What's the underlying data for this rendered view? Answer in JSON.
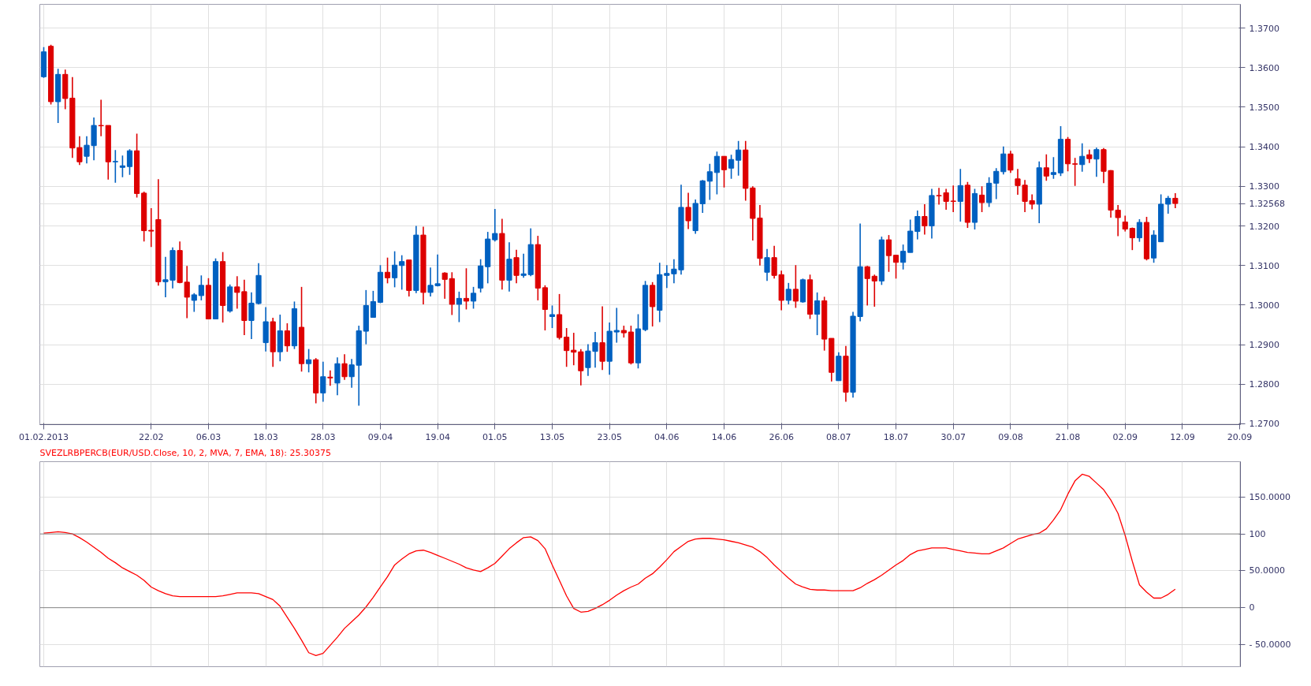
{
  "chart_data": [
    {
      "type": "candlestick",
      "categories": [
        "01.02.2013",
        null,
        null,
        null,
        null,
        null,
        null,
        null,
        null,
        null,
        null,
        null,
        null,
        null,
        null,
        "22.02",
        null,
        null,
        null,
        null,
        null,
        null,
        null,
        "06.03",
        null,
        null,
        null,
        null,
        null,
        null,
        null,
        "18.03",
        null,
        null,
        null,
        null,
        null,
        null,
        null,
        "28.03",
        null,
        null,
        null,
        null,
        null,
        null,
        null,
        "09.04",
        null,
        null,
        null,
        null,
        null,
        null,
        null,
        "19.04",
        null,
        null,
        null,
        null,
        null,
        null,
        null,
        "01.05",
        null,
        null,
        null,
        null,
        null,
        null,
        null,
        "13.05",
        null,
        null,
        null,
        null,
        null,
        null,
        null,
        "23.05",
        null,
        null,
        null,
        null,
        null,
        null,
        null,
        "04.06",
        null,
        null,
        null,
        null,
        null,
        null,
        null,
        "14.06",
        null,
        null,
        null,
        null,
        null,
        null,
        null,
        "26.06",
        null,
        null,
        null,
        null,
        null,
        null,
        null,
        "08.07",
        null,
        null,
        null,
        null,
        null,
        null,
        null,
        "18.07",
        null,
        null,
        null,
        null,
        null,
        null,
        null,
        "30.07",
        null,
        null,
        null,
        null,
        null,
        null,
        null,
        "09.08",
        null,
        null,
        null,
        null,
        null,
        null,
        null,
        "21.08",
        null,
        null,
        null,
        null,
        null,
        null,
        null,
        "02.09",
        null,
        null,
        null,
        null,
        null,
        null,
        null,
        "12.09",
        null,
        null,
        null,
        null,
        null,
        null,
        null,
        "20.09"
      ],
      "ohlc": [
        [
          1.3577,
          1.3652,
          1.3574,
          1.364
        ],
        [
          1.3654,
          1.3658,
          1.3507,
          1.3514
        ],
        [
          1.3514,
          1.3597,
          1.346,
          1.3583
        ],
        [
          1.3583,
          1.3595,
          1.3495,
          1.3522
        ],
        [
          1.3523,
          1.3576,
          1.3372,
          1.3397
        ],
        [
          1.3398,
          1.3427,
          1.3354,
          1.3362
        ],
        [
          1.3376,
          1.3427,
          1.3358,
          1.3404
        ],
        [
          1.3403,
          1.3474,
          1.3366,
          1.3454
        ],
        [
          1.3454,
          1.3519,
          1.3427,
          1.3453
        ],
        [
          1.3454,
          1.3454,
          1.3317,
          1.3362
        ],
        [
          1.3362,
          1.3392,
          1.3309,
          1.3363
        ],
        [
          1.3348,
          1.3378,
          1.3323,
          1.3352
        ],
        [
          1.335,
          1.3394,
          1.3329,
          1.339
        ],
        [
          1.339,
          1.3433,
          1.3272,
          1.3282
        ],
        [
          1.3283,
          1.3287,
          1.3161,
          1.3188
        ],
        [
          1.3189,
          1.3245,
          1.3147,
          1.3187
        ],
        [
          1.3216,
          1.3318,
          1.3049,
          1.3059
        ],
        [
          1.3059,
          1.3122,
          1.302,
          1.3064
        ],
        [
          1.3063,
          1.3146,
          1.3042,
          1.3138
        ],
        [
          1.3138,
          1.3161,
          1.3055,
          1.3057
        ],
        [
          1.3058,
          1.3099,
          1.2967,
          1.302
        ],
        [
          1.3012,
          1.303,
          1.2983,
          1.3026
        ],
        [
          1.3024,
          1.3075,
          1.3012,
          1.305
        ],
        [
          1.305,
          1.3068,
          1.2964,
          1.2965
        ],
        [
          1.2965,
          1.3118,
          1.2964,
          1.311
        ],
        [
          1.311,
          1.3134,
          1.2956,
          1.2999
        ],
        [
          1.2985,
          1.3052,
          1.2981,
          1.3046
        ],
        [
          1.3046,
          1.3073,
          1.2991,
          1.3032
        ],
        [
          1.3034,
          1.3064,
          1.2924,
          1.2961
        ],
        [
          1.2961,
          1.3032,
          1.2914,
          1.3005
        ],
        [
          1.3004,
          1.3106,
          1.3002,
          1.3075
        ],
        [
          1.2905,
          1.2995,
          1.2883,
          1.2958
        ],
        [
          1.2958,
          1.2968,
          1.2844,
          1.2882
        ],
        [
          1.2882,
          1.2976,
          1.2858,
          1.2935
        ],
        [
          1.2935,
          1.2954,
          1.2882,
          1.2897
        ],
        [
          1.2897,
          1.3009,
          1.2889,
          1.2991
        ],
        [
          1.2944,
          1.3046,
          1.2832,
          1.2852
        ],
        [
          1.2852,
          1.2889,
          1.283,
          1.2862
        ],
        [
          1.2862,
          1.2866,
          1.2752,
          1.2778
        ],
        [
          1.2778,
          1.2857,
          1.2756,
          1.2819
        ],
        [
          1.2818,
          1.2835,
          1.2796,
          1.2816
        ],
        [
          1.2803,
          1.2868,
          1.2772,
          1.2852
        ],
        [
          1.2852,
          1.2876,
          1.2811,
          1.2819
        ],
        [
          1.2819,
          1.2864,
          1.2791,
          1.2849
        ],
        [
          1.2848,
          1.2948,
          1.2746,
          1.2935
        ],
        [
          1.2934,
          1.3038,
          1.2901,
          1.2999
        ],
        [
          1.2969,
          1.3036,
          1.2969,
          1.3009
        ],
        [
          1.3007,
          1.3101,
          1.3005,
          1.3083
        ],
        [
          1.3083,
          1.312,
          1.3055,
          1.3069
        ],
        [
          1.3069,
          1.3136,
          1.3045,
          1.3101
        ],
        [
          1.31,
          1.3126,
          1.3039,
          1.311
        ],
        [
          1.3114,
          1.3114,
          1.3022,
          1.3037
        ],
        [
          1.3037,
          1.32,
          1.303,
          1.3177
        ],
        [
          1.3177,
          1.3198,
          1.3002,
          1.3032
        ],
        [
          1.3032,
          1.3095,
          1.3022,
          1.305
        ],
        [
          1.3049,
          1.3128,
          1.3047,
          1.3054
        ],
        [
          1.3081,
          1.3083,
          1.3016,
          1.3065
        ],
        [
          1.3067,
          1.3083,
          1.2975,
          1.3002
        ],
        [
          1.3002,
          1.3034,
          1.2957,
          1.3017
        ],
        [
          1.3017,
          1.3093,
          1.2989,
          1.301
        ],
        [
          1.301,
          1.3046,
          1.2991,
          1.303
        ],
        [
          1.3043,
          1.3116,
          1.3032,
          1.3099
        ],
        [
          1.3097,
          1.3185,
          1.3055,
          1.3167
        ],
        [
          1.3165,
          1.3243,
          1.3161,
          1.3181
        ],
        [
          1.3181,
          1.3218,
          1.3039,
          1.3063
        ],
        [
          1.3063,
          1.3159,
          1.3034,
          1.3116
        ],
        [
          1.312,
          1.314,
          1.3055,
          1.3075
        ],
        [
          1.3075,
          1.313,
          1.3069,
          1.3079
        ],
        [
          1.3077,
          1.3194,
          1.3073,
          1.3153
        ],
        [
          1.3153,
          1.3175,
          1.3012,
          1.3043
        ],
        [
          1.3044,
          1.305,
          1.2936,
          1.2989
        ],
        [
          1.2971,
          1.2999,
          1.2942,
          1.2976
        ],
        [
          1.2976,
          1.3028,
          1.2913,
          1.2918
        ],
        [
          1.2919,
          1.2942,
          1.2844,
          1.2885
        ],
        [
          1.2886,
          1.293,
          1.2848,
          1.2881
        ],
        [
          1.2882,
          1.2889,
          1.2797,
          1.2834
        ],
        [
          1.2842,
          1.2901,
          1.2821,
          1.2884
        ],
        [
          1.2883,
          1.2932,
          1.2842,
          1.2905
        ],
        [
          1.2905,
          1.2997,
          1.2836,
          1.2858
        ],
        [
          1.2858,
          1.2956,
          1.2824,
          1.2934
        ],
        [
          1.2932,
          1.2993,
          1.2905,
          1.2936
        ],
        [
          1.2936,
          1.2948,
          1.2918,
          1.293
        ],
        [
          1.2932,
          1.2948,
          1.285,
          1.2854
        ],
        [
          1.2854,
          1.2977,
          1.284,
          1.294
        ],
        [
          1.2938,
          1.3061,
          1.2934,
          1.305
        ],
        [
          1.305,
          1.3058,
          1.2946,
          1.2996
        ],
        [
          1.2987,
          1.3107,
          1.2957,
          1.3077
        ],
        [
          1.3075,
          1.3101,
          1.3043,
          1.308
        ],
        [
          1.3079,
          1.3116,
          1.3055,
          1.3091
        ],
        [
          1.3089,
          1.3304,
          1.3077,
          1.3247
        ],
        [
          1.3247,
          1.3284,
          1.3192,
          1.3213
        ],
        [
          1.3188,
          1.3267,
          1.318,
          1.3257
        ],
        [
          1.3256,
          1.3316,
          1.3233,
          1.3314
        ],
        [
          1.3313,
          1.3357,
          1.3266,
          1.3337
        ],
        [
          1.3335,
          1.3388,
          1.328,
          1.3376
        ],
        [
          1.3376,
          1.3376,
          1.3297,
          1.3342
        ],
        [
          1.3346,
          1.338,
          1.3319,
          1.3368
        ],
        [
          1.3366,
          1.3415,
          1.3327,
          1.3392
        ],
        [
          1.3392,
          1.3415,
          1.3264,
          1.3295
        ],
        [
          1.3296,
          1.33,
          1.3163,
          1.3219
        ],
        [
          1.322,
          1.3253,
          1.31,
          1.3118
        ],
        [
          1.3083,
          1.3142,
          1.3061,
          1.312
        ],
        [
          1.312,
          1.315,
          1.3067,
          1.3075
        ],
        [
          1.3077,
          1.3087,
          1.2987,
          1.3012
        ],
        [
          1.3012,
          1.3056,
          1.3002,
          1.304
        ],
        [
          1.304,
          1.3101,
          1.2993,
          1.301
        ],
        [
          1.3008,
          1.3067,
          1.3006,
          1.3064
        ],
        [
          1.3064,
          1.3077,
          1.2965,
          1.2977
        ],
        [
          1.2977,
          1.3032,
          1.2924,
          1.3011
        ],
        [
          1.3011,
          1.3021,
          1.2885,
          1.2914
        ],
        [
          1.2916,
          1.2916,
          1.2807,
          1.283
        ],
        [
          1.2809,
          1.2881,
          1.2809,
          1.2871
        ],
        [
          1.2871,
          1.2897,
          1.2756,
          1.278
        ],
        [
          1.278,
          1.2983,
          1.2766,
          1.2972
        ],
        [
          1.2971,
          1.3206,
          1.2959,
          1.3097
        ],
        [
          1.3097,
          1.3099,
          1.2999,
          1.3067
        ],
        [
          1.3073,
          1.3077,
          1.2996,
          1.3061
        ],
        [
          1.3061,
          1.3173,
          1.3051,
          1.3165
        ],
        [
          1.3165,
          1.3177,
          1.3084,
          1.3125
        ],
        [
          1.3126,
          1.3126,
          1.3067,
          1.3108
        ],
        [
          1.3108,
          1.3153,
          1.309,
          1.3136
        ],
        [
          1.3133,
          1.3216,
          1.3133,
          1.3187
        ],
        [
          1.3186,
          1.3239,
          1.3166,
          1.3224
        ],
        [
          1.3224,
          1.3255,
          1.3178,
          1.32
        ],
        [
          1.32,
          1.3294,
          1.3168,
          1.3277
        ],
        [
          1.3277,
          1.3296,
          1.3254,
          1.3276
        ],
        [
          1.3284,
          1.3294,
          1.3241,
          1.3262
        ],
        [
          1.3263,
          1.3302,
          1.3235,
          1.3262
        ],
        [
          1.3262,
          1.3344,
          1.3211,
          1.3302
        ],
        [
          1.3303,
          1.3311,
          1.3195,
          1.3209
        ],
        [
          1.3209,
          1.3294,
          1.3191,
          1.3282
        ],
        [
          1.3278,
          1.33,
          1.3235,
          1.3259
        ],
        [
          1.3259,
          1.3323,
          1.3248,
          1.3308
        ],
        [
          1.3308,
          1.3346,
          1.3268,
          1.3338
        ],
        [
          1.3337,
          1.3401,
          1.333,
          1.3382
        ],
        [
          1.3382,
          1.339,
          1.3334,
          1.3341
        ],
        [
          1.3319,
          1.3344,
          1.3279,
          1.3302
        ],
        [
          1.3303,
          1.3316,
          1.3235,
          1.3262
        ],
        [
          1.3264,
          1.328,
          1.3242,
          1.3255
        ],
        [
          1.3255,
          1.3363,
          1.3207,
          1.3347
        ],
        [
          1.3347,
          1.3381,
          1.3314,
          1.3326
        ],
        [
          1.333,
          1.3374,
          1.3319,
          1.3335
        ],
        [
          1.3334,
          1.3452,
          1.3326,
          1.3419
        ],
        [
          1.3419,
          1.3425,
          1.3338,
          1.3357
        ],
        [
          1.3357,
          1.3372,
          1.3301,
          1.3356
        ],
        [
          1.3355,
          1.3409,
          1.3337,
          1.3376
        ],
        [
          1.338,
          1.3393,
          1.3359,
          1.337
        ],
        [
          1.3369,
          1.3398,
          1.3324,
          1.3393
        ],
        [
          1.3393,
          1.3397,
          1.3308,
          1.3338
        ],
        [
          1.334,
          1.3341,
          1.3221,
          1.324
        ],
        [
          1.324,
          1.3253,
          1.3174,
          1.3221
        ],
        [
          1.321,
          1.3226,
          1.3186,
          1.3192
        ],
        [
          1.3194,
          1.3196,
          1.3139,
          1.317
        ],
        [
          1.317,
          1.3217,
          1.316,
          1.3209
        ],
        [
          1.3209,
          1.3223,
          1.3113,
          1.3117
        ],
        [
          1.3119,
          1.3189,
          1.3107,
          1.3177
        ],
        [
          1.316,
          1.328,
          1.316,
          1.3255
        ],
        [
          1.3255,
          1.3276,
          1.3231,
          1.327
        ],
        [
          1.327,
          1.3283,
          1.3245,
          1.32568
        ],
        null,
        null,
        null,
        null,
        null,
        null,
        null,
        null,
        null
      ],
      "ylim": [
        1.2698,
        1.376
      ],
      "yticks": [
        {
          "value": 1.27,
          "label": "1.2700"
        },
        {
          "value": 1.28,
          "label": "1.2800"
        },
        {
          "value": 1.29,
          "label": "1.2900"
        },
        {
          "value": 1.3,
          "label": "1.3000"
        },
        {
          "value": 1.31,
          "label": "1.3100"
        },
        {
          "value": 1.32,
          "label": "1.3200"
        },
        {
          "value": 1.32568,
          "label": "1.32568"
        },
        {
          "value": 1.33,
          "label": "1.3300"
        },
        {
          "value": 1.34,
          "label": "1.3400"
        },
        {
          "value": 1.35,
          "label": "1.3500"
        },
        {
          "value": 1.36,
          "label": "1.3600"
        },
        {
          "value": 1.37,
          "label": "1.3700"
        }
      ],
      "grid": true
    },
    {
      "type": "line",
      "title": "SVEZLRBPERCB(EUR/USD.Close, 10, 2, MVA, 7, EMA, 18): 25.30375",
      "categories": [
        "01.02.2013",
        null,
        null,
        null,
        null,
        null,
        null,
        null,
        null,
        null,
        null,
        null,
        null,
        null,
        null,
        "22.02",
        null,
        null,
        null,
        null,
        null,
        null,
        null,
        "06.03",
        null,
        null,
        null,
        null,
        null,
        null,
        null,
        "18.03",
        null,
        null,
        null,
        null,
        null,
        null,
        null,
        "28.03",
        null,
        null,
        null,
        null,
        null,
        null,
        null,
        "09.04",
        null,
        null,
        null,
        null,
        null,
        null,
        null,
        "19.04",
        null,
        null,
        null,
        null,
        null,
        null,
        null,
        "01.05",
        null,
        null,
        null,
        null,
        null,
        null,
        null,
        "13.05",
        null,
        null,
        null,
        null,
        null,
        null,
        null,
        "23.05",
        null,
        null,
        null,
        null,
        null,
        null,
        null,
        "04.06",
        null,
        null,
        null,
        null,
        null,
        null,
        null,
        "14.06",
        null,
        null,
        null,
        null,
        null,
        null,
        null,
        "26.06",
        null,
        null,
        null,
        null,
        null,
        null,
        null,
        "08.07",
        null,
        null,
        null,
        null,
        null,
        null,
        null,
        "18.07",
        null,
        null,
        null,
        null,
        null,
        null,
        null,
        "30.07",
        null,
        null,
        null,
        null,
        null,
        null,
        null,
        "09.08",
        null,
        null,
        null,
        null,
        null,
        null,
        null,
        "21.08",
        null,
        null,
        null,
        null,
        null,
        null,
        null,
        "02.09",
        null,
        null,
        null,
        null,
        null,
        null,
        null,
        "12.09",
        null,
        null,
        null,
        null,
        null,
        null,
        null,
        "20.09"
      ],
      "series": [
        {
          "color": "#ff0000",
          "values": [
            101,
            102,
            103,
            102,
            100,
            95,
            89,
            82,
            75,
            67,
            61,
            54,
            49,
            44,
            37,
            28,
            23,
            19,
            16,
            15,
            15,
            15,
            15,
            15,
            15,
            16,
            18,
            20,
            20,
            20,
            19,
            15,
            11,
            2,
            -13,
            -28,
            -44,
            -61,
            -65,
            -62,
            -51,
            -40,
            -28,
            -19,
            -10,
            1,
            14,
            28,
            42,
            58,
            66,
            73,
            77,
            78,
            75,
            71,
            67,
            63,
            59,
            54,
            51,
            49,
            54,
            60,
            70,
            80,
            88,
            95,
            96,
            91,
            80,
            58,
            37,
            16,
            -1,
            -6,
            -5,
            -1,
            4,
            10,
            17,
            23,
            28,
            32,
            40,
            46,
            55,
            65,
            76,
            83,
            90,
            93,
            94,
            94,
            93,
            92,
            90,
            88,
            85,
            82,
            76,
            68,
            58,
            49,
            40,
            32,
            28,
            25,
            24,
            24,
            23,
            23,
            23,
            23,
            27,
            33,
            38,
            44,
            51,
            58,
            64,
            72,
            77,
            79,
            81,
            81,
            81,
            79,
            77,
            75,
            74,
            73,
            73,
            77,
            81,
            87,
            93,
            96,
            99,
            101,
            107,
            119,
            133,
            154,
            172,
            181,
            178,
            169,
            160,
            146,
            128,
            98,
            63,
            31,
            21,
            13,
            13,
            18,
            25,
            null,
            null,
            null,
            null,
            null,
            null,
            null,
            null,
            null
          ]
        }
      ],
      "ylim": [
        -80,
        198
      ],
      "yticks": [
        {
          "value": -50,
          "label": "- 50.0000"
        },
        {
          "value": 50,
          "label": "50.0000"
        },
        {
          "value": 150,
          "label": "150.0000"
        }
      ],
      "ref_lines": [
        {
          "axis": "y",
          "value": 100,
          "label": "100",
          "color": "#808080"
        },
        {
          "axis": "y",
          "value": 0,
          "label": "0",
          "color": "#808080"
        }
      ],
      "grid": true,
      "tick_labels": "y"
    }
  ]
}
